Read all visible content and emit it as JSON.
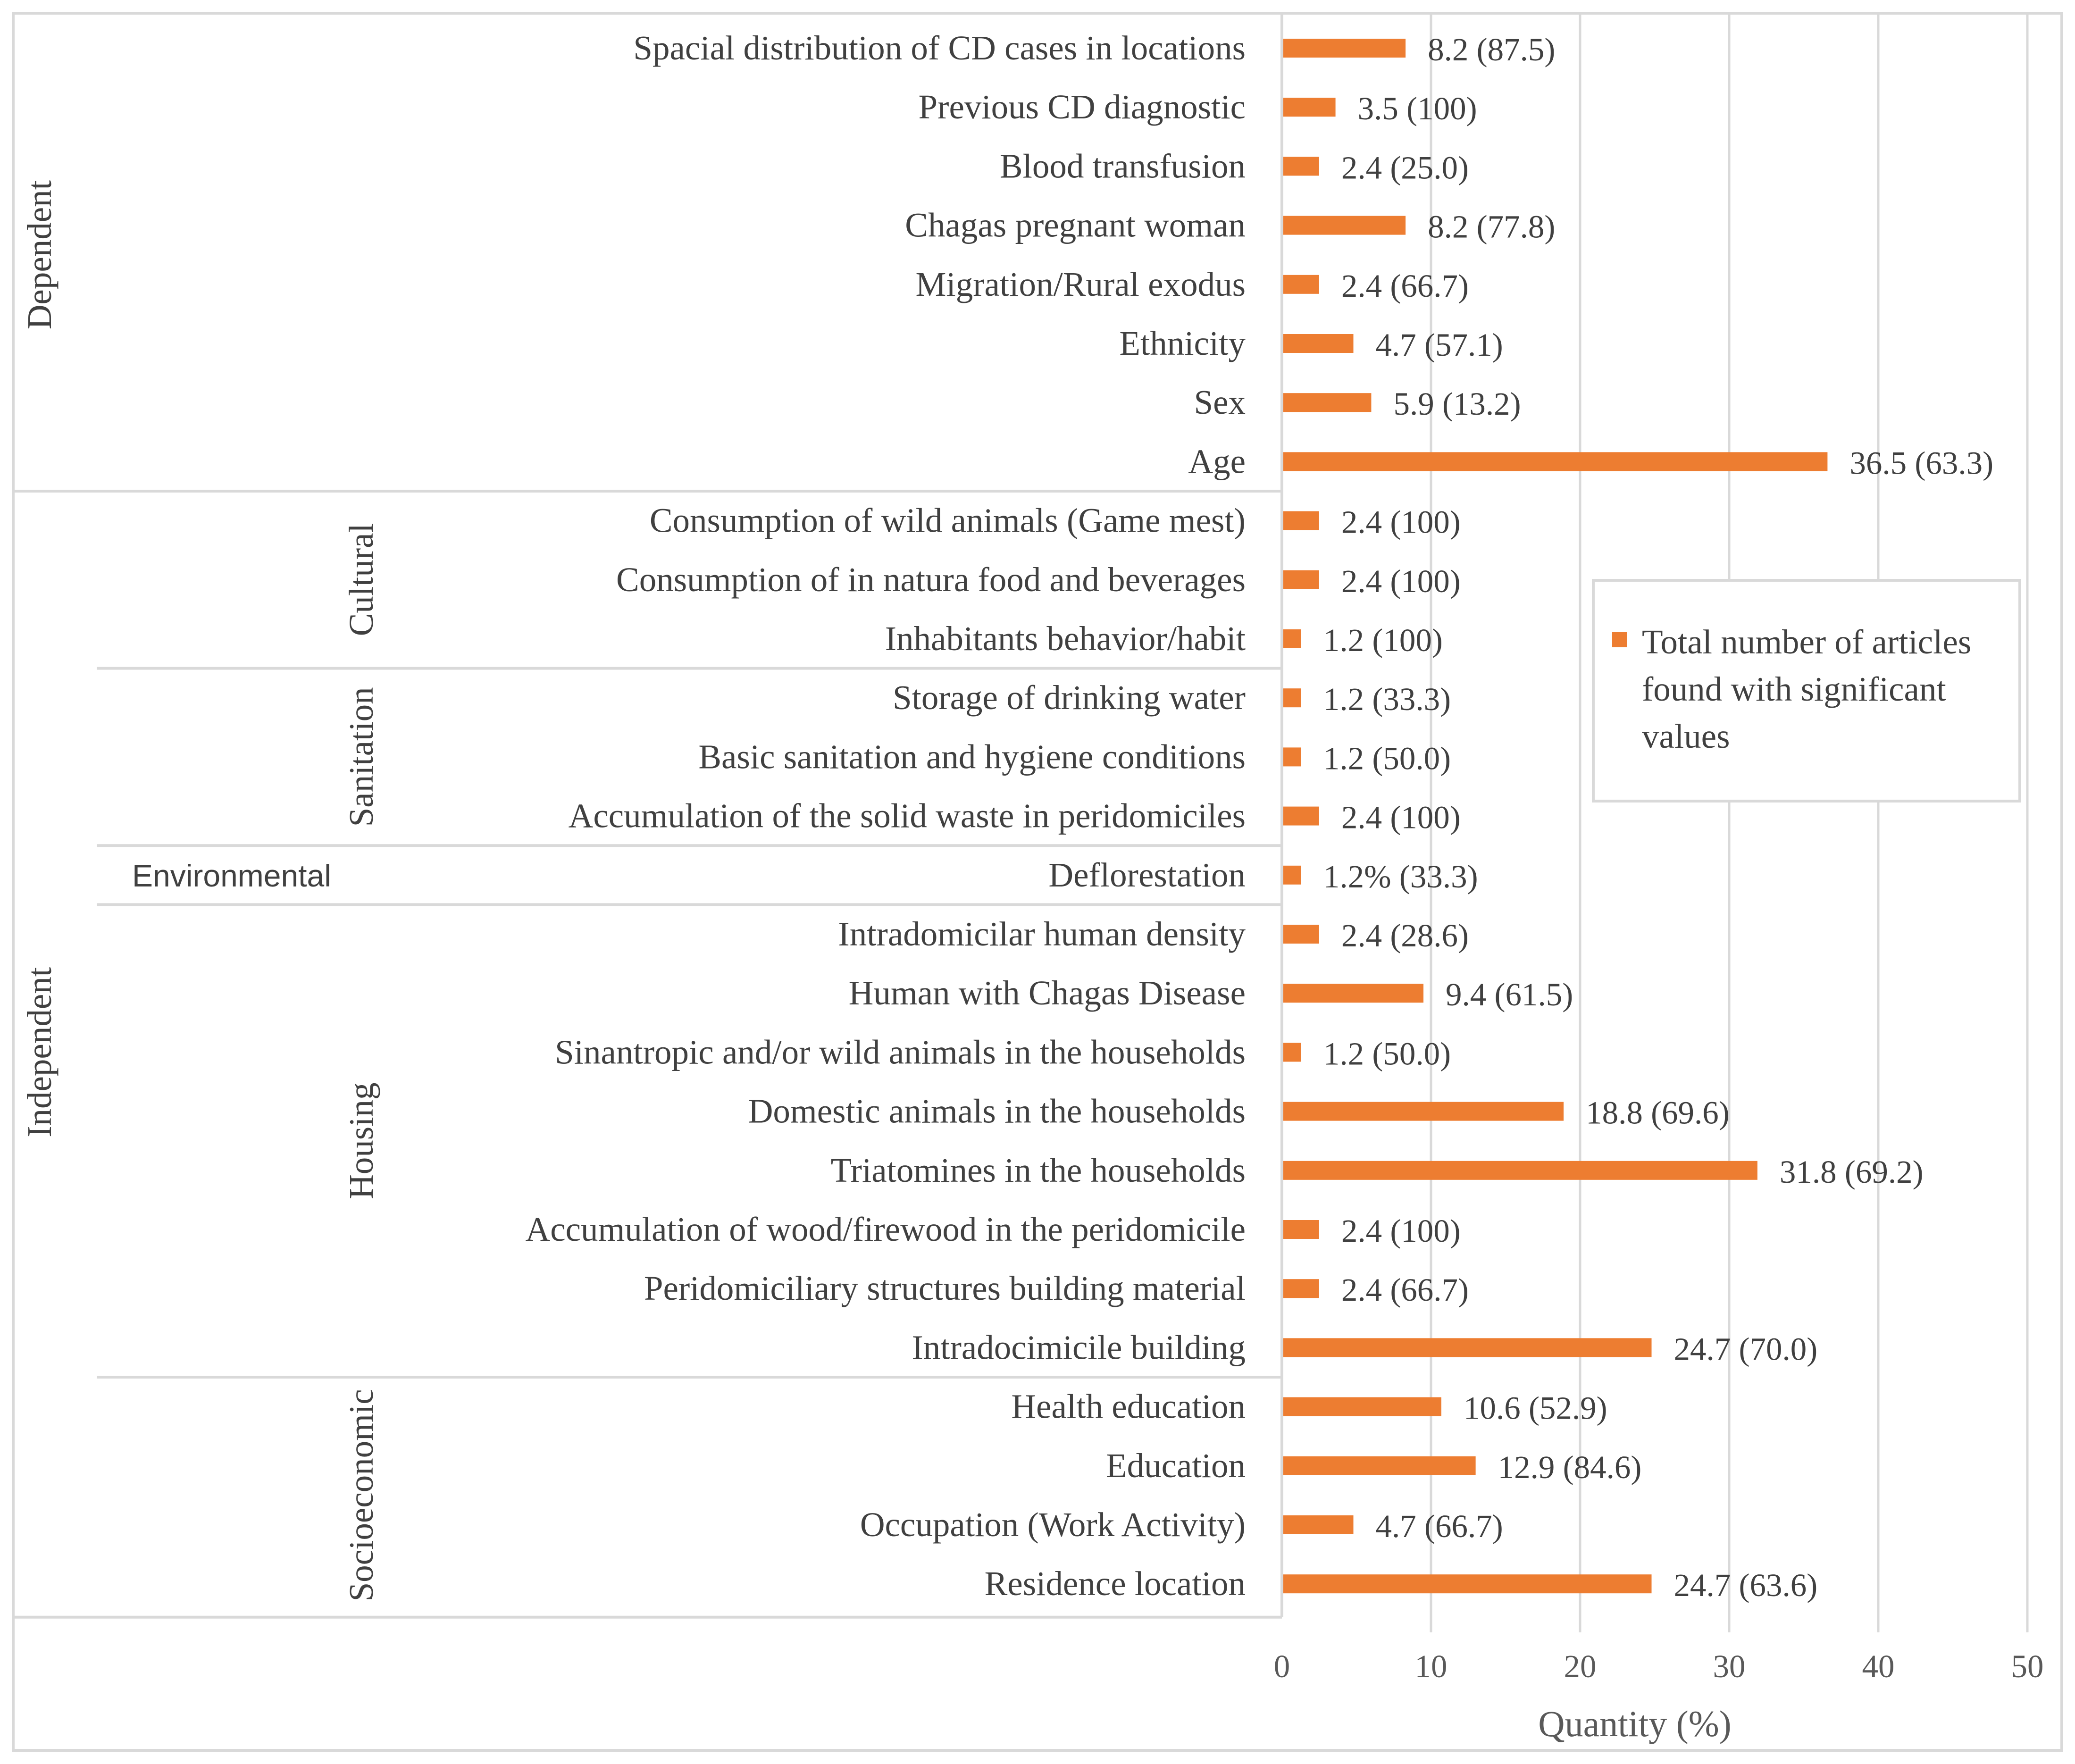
{
  "chart_data": {
    "type": "bar",
    "orientation": "horizontal",
    "xlabel": "Quantity (%)",
    "xlim": [
      0,
      50
    ],
    "xticks": [
      "0",
      "10",
      "20",
      "30",
      "40",
      "50"
    ],
    "grid": true,
    "bar_color": "#ED7D31",
    "legend": {
      "label": "Total number of articles found with significant values",
      "position": "right"
    },
    "groups": [
      {
        "name": "Dependent",
        "items": [
          {
            "label": "Spacial distribution of CD cases in locations",
            "value": 8.2,
            "text": "8.2 (87.5)"
          },
          {
            "label": "Previous CD diagnostic",
            "value": 3.5,
            "text": "3.5 (100)"
          },
          {
            "label": "Blood transfusion",
            "value": 2.4,
            "text": "2.4 (25.0)"
          },
          {
            "label": "Chagas pregnant woman",
            "value": 8.2,
            "text": "8.2 (77.8)"
          },
          {
            "label": "Migration/Rural exodus",
            "value": 2.4,
            "text": "2.4 (66.7)"
          },
          {
            "label": "Ethnicity",
            "value": 4.7,
            "text": "4.7 (57.1)"
          },
          {
            "label": "Sex",
            "value": 5.9,
            "text": "5.9 (13.2)"
          },
          {
            "label": "Age",
            "value": 36.5,
            "text": "36.5 (63.3)"
          }
        ]
      },
      {
        "name": "Independent",
        "subgroups": [
          {
            "name": "Cultural",
            "items": [
              {
                "label": "Consumption of wild animals (Game mest)",
                "value": 2.4,
                "text": "2.4 (100)"
              },
              {
                "label": "Consumption of in natura food and beverages",
                "value": 2.4,
                "text": "2.4 (100)"
              },
              {
                "label": "Inhabitants behavior/habit",
                "value": 1.2,
                "text": "1.2 (100)"
              }
            ]
          },
          {
            "name": "Sanitation",
            "items": [
              {
                "label": "Storage of drinking water",
                "value": 1.2,
                "text": "1.2 (33.3)"
              },
              {
                "label": "Basic sanitation and hygiene conditions",
                "value": 1.2,
                "text": "1.2 (50.0)"
              },
              {
                "label": "Accumulation of the solid waste in peridomiciles",
                "value": 2.4,
                "text": "2.4 (100)"
              }
            ]
          },
          {
            "name": "Environmental",
            "items": [
              {
                "label": "Deflorestation",
                "value": 1.2,
                "text": "1.2% (33.3)"
              }
            ]
          },
          {
            "name": "Housing",
            "items": [
              {
                "label": "Intradomicilar human density",
                "value": 2.4,
                "text": "2.4 (28.6)"
              },
              {
                "label": "Human with Chagas Disease",
                "value": 9.4,
                "text": "9.4 (61.5)"
              },
              {
                "label": "Sinantropic and/or wild animals in the households",
                "value": 1.2,
                "text": "1.2 (50.0)"
              },
              {
                "label": "Domestic animals in the households",
                "value": 18.8,
                "text": "18.8 (69.6)"
              },
              {
                "label": "Triatomines in the households",
                "value": 31.8,
                "text": "31.8 (69.2)"
              },
              {
                "label": "Accumulation of wood/firewood in the peridomicile",
                "value": 2.4,
                "text": "2.4 (100)"
              },
              {
                "label": "Peridomiciliary structures building material",
                "value": 2.4,
                "text": "2.4 (66.7)"
              },
              {
                "label": "Intradocimicile building",
                "value": 24.7,
                "text": "24.7 (70.0)"
              }
            ]
          },
          {
            "name": "Socioeconomic",
            "items": [
              {
                "label": "Health education",
                "value": 10.6,
                "text": "10.6 (52.9)"
              },
              {
                "label": "Education",
                "value": 12.9,
                "text": "12.9 (84.6)"
              },
              {
                "label": "Occupation (Work Activity)",
                "value": 4.7,
                "text": "4.7 (66.7)"
              },
              {
                "label": "Residence location",
                "value": 24.7,
                "text": "24.7 (63.6)"
              }
            ]
          }
        ]
      }
    ]
  }
}
